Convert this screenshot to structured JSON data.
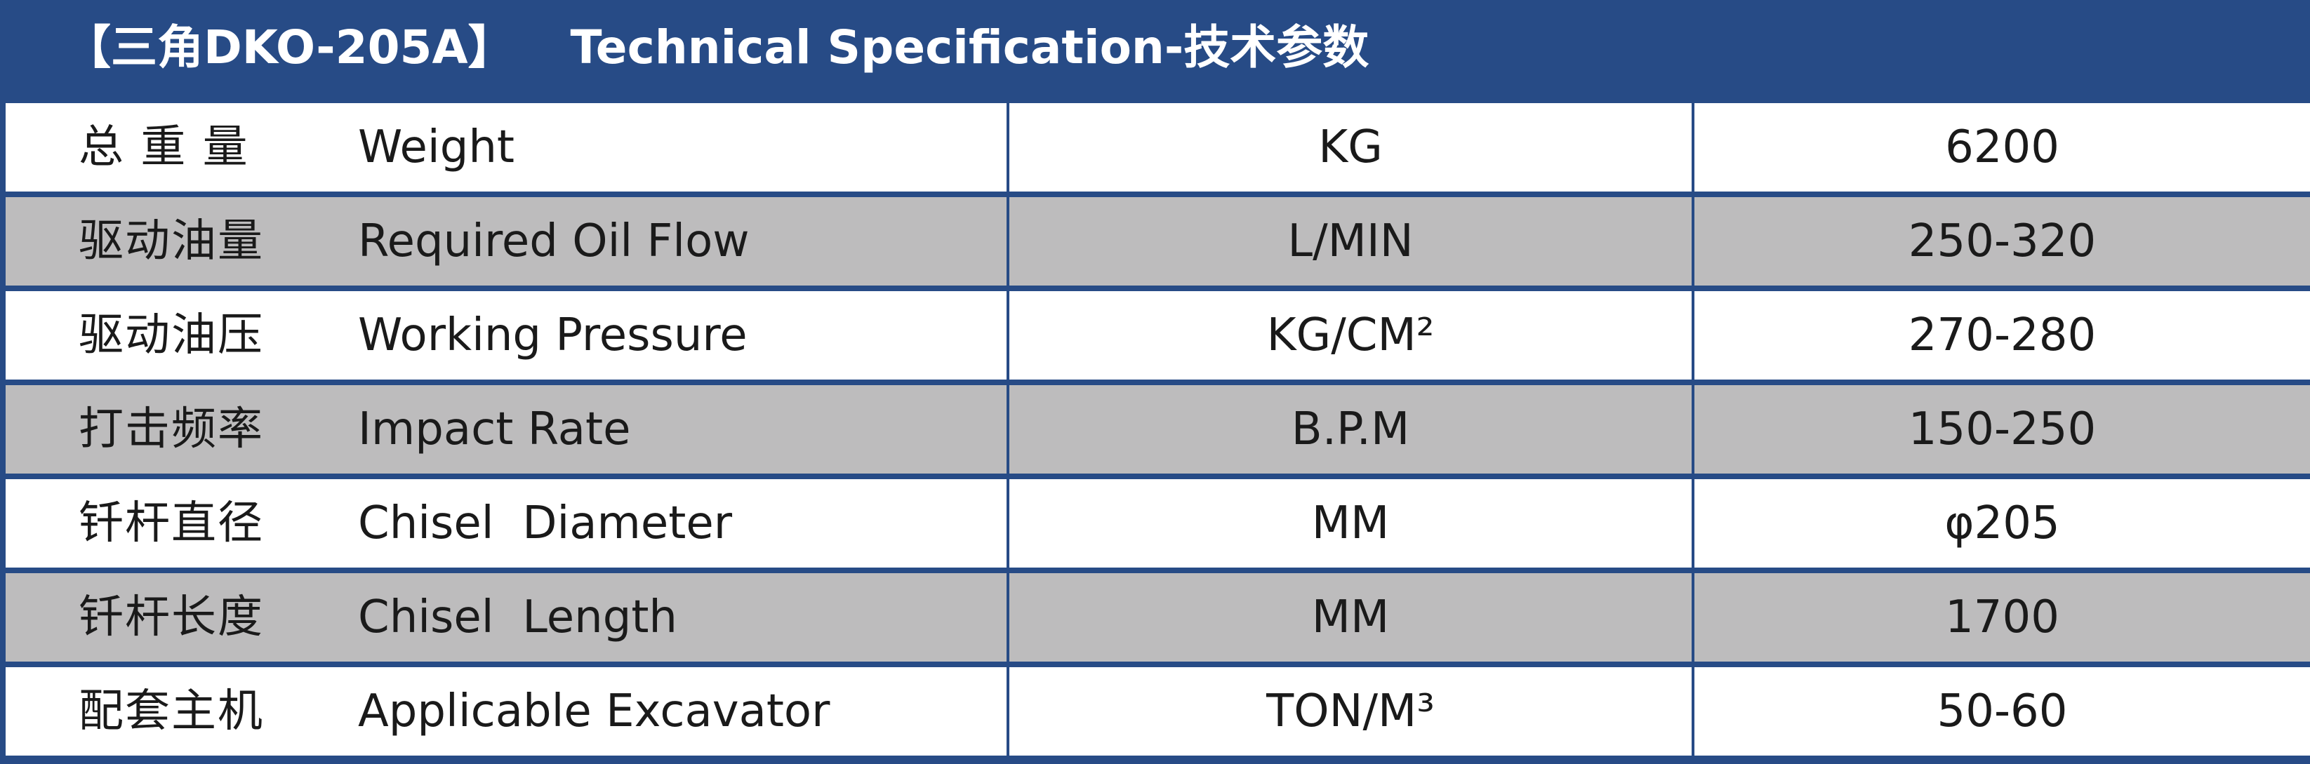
{
  "title": {
    "model": "【三角DKO-205A】",
    "heading": "Technical Specification-技术参数"
  },
  "rows": [
    {
      "zh": "总 重 量",
      "en": "Weight",
      "unit": "KG",
      "value": "6200"
    },
    {
      "zh": "驱动油量",
      "en": "Required Oil Flow",
      "unit": "L/MIN",
      "value": "250-320"
    },
    {
      "zh": "驱动油压",
      "en": "Working Pressure",
      "unit": "KG/CM²",
      "value": "270-280"
    },
    {
      "zh": "打击频率",
      "en": "Impact Rate",
      "unit": "B.P.M",
      "value": "150-250"
    },
    {
      "zh": "钎杆直径",
      "en": "Chisel  Diameter",
      "unit": "MM",
      "value": "φ205"
    },
    {
      "zh": "钎杆长度",
      "en": "Chisel  Length",
      "unit": "MM",
      "value": "1700"
    },
    {
      "zh": "配套主机",
      "en": "Applicable Excavator",
      "unit": "TON/M³",
      "value": "50-60"
    }
  ],
  "colors": {
    "border": "#274b86",
    "row_alt": "#bdbcbd",
    "row": "#ffffff"
  }
}
